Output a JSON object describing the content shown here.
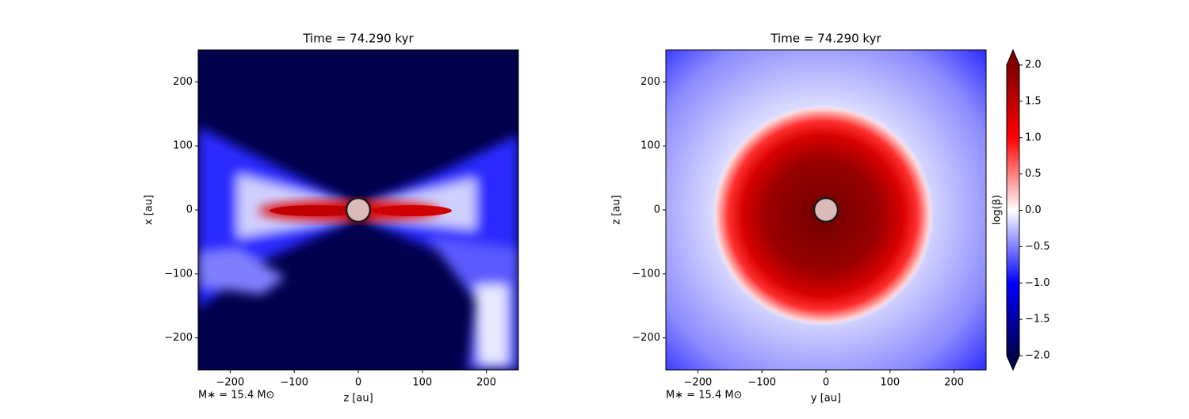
{
  "chart_data": [
    {
      "type": "contour",
      "title": "Time = 74.290 kyr",
      "xlabel": "z [au]",
      "ylabel": "x [au]",
      "annotation": "M∗ = 15.4 M⊙",
      "xlim": [
        -250,
        250
      ],
      "ylim": [
        -250,
        250
      ],
      "xticks": [
        {
          "value": -200,
          "label": "−200"
        },
        {
          "value": -100,
          "label": "−100"
        },
        0,
        100,
        200
      ],
      "yticks": [
        {
          "value": -200,
          "label": "−200"
        },
        {
          "value": -100,
          "label": "−100"
        },
        0,
        100,
        200
      ]
    },
    {
      "type": "contour",
      "title": "Time = 74.290 kyr",
      "xlabel": "y [au]",
      "ylabel": "z [au]",
      "annotation": "M∗ = 15.4 M⊙",
      "xlim": [
        -250,
        250
      ],
      "ylim": [
        -250,
        250
      ],
      "xticks": [
        {
          "value": -200,
          "label": "−200"
        },
        {
          "value": -100,
          "label": "−100"
        },
        0,
        100,
        200
      ],
      "yticks": [
        {
          "value": -200,
          "label": "−200"
        },
        {
          "value": -100,
          "label": "−100"
        },
        0,
        100,
        200
      ]
    }
  ],
  "colorbar": {
    "label": "log(β)",
    "lim": [
      -2,
      2
    ],
    "colormap": [
      "#00004c",
      "#0000ff",
      "#ffffff",
      "#ff0000",
      "#7f0000"
    ],
    "ticks": [
      {
        "value": -2,
        "label": "−2.0"
      },
      {
        "value": -1.5,
        "label": "−1.5"
      },
      {
        "value": -1,
        "label": "−1.0"
      },
      {
        "value": -0.5,
        "label": "−0.5"
      },
      {
        "value": 0,
        "label": "0.0"
      },
      {
        "value": 0.5,
        "label": "0.5"
      },
      {
        "value": 1,
        "label": "1.0"
      },
      {
        "value": 1.5,
        "label": "1.5"
      },
      {
        "value": 2,
        "label": "2.0"
      }
    ]
  }
}
